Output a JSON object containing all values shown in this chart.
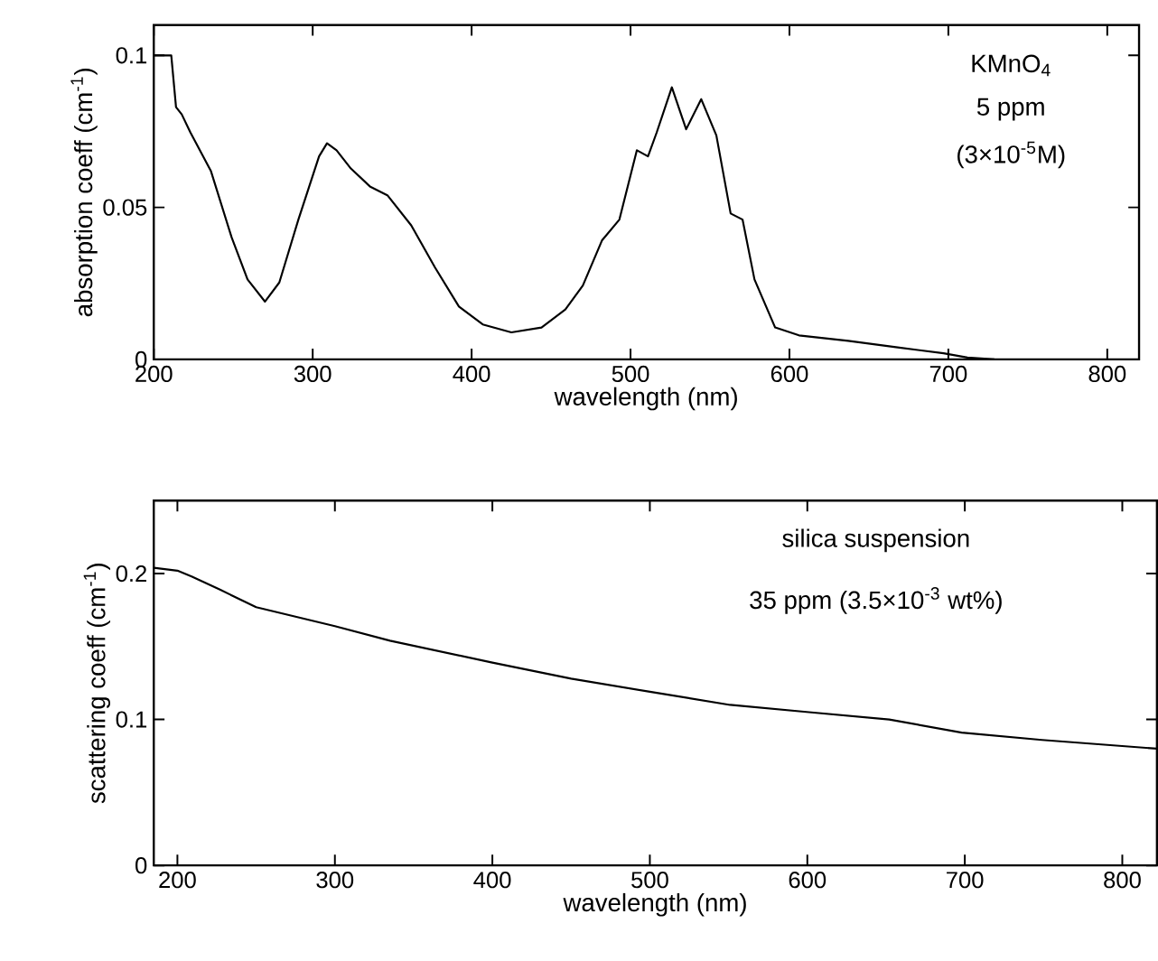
{
  "chart_data": [
    {
      "type": "line",
      "xlabel": "wavelength (nm)",
      "ylabel": "absorption coeff  (cm$^{-1}$)",
      "color": "#000000",
      "x": [
        200,
        211,
        214,
        217.6,
        223,
        236,
        249,
        259,
        270,
        279,
        291,
        304,
        309,
        315,
        324,
        336,
        347,
        362,
        377,
        392,
        407,
        425,
        444,
        459,
        470,
        482,
        493,
        504,
        511,
        516.5,
        526,
        535,
        544.5,
        554,
        563,
        570.5,
        578,
        591,
        606,
        637,
        667,
        697,
        712,
        729
      ],
      "values": [
        0.1,
        0.1,
        0.083,
        0.0806,
        0.0747,
        0.0619,
        0.0401,
        0.0263,
        0.019,
        0.0253,
        0.046,
        0.0668,
        0.0711,
        0.0688,
        0.0628,
        0.0569,
        0.054,
        0.0441,
        0.0302,
        0.0174,
        0.0115,
        0.0089,
        0.0105,
        0.0164,
        0.0243,
        0.0391,
        0.046,
        0.0688,
        0.0668,
        0.0747,
        0.0895,
        0.0757,
        0.0856,
        0.0737,
        0.048,
        0.046,
        0.0263,
        0.0105,
        0.0079,
        0.0061,
        0.004,
        0.002,
        0.0006,
        0
      ],
      "xlim": [
        200,
        820
      ],
      "ylim": [
        0,
        0.11
      ],
      "xticks": [
        200,
        300,
        400,
        500,
        600,
        700,
        800
      ],
      "yticks": [
        0,
        0.05,
        0.1
      ],
      "annotations": [
        "KMnO$_{4}$",
        "5 ppm",
        "(3×10$^{-5}$M)"
      ]
    },
    {
      "type": "line",
      "xlabel": "wavelength (nm)",
      "ylabel": "scattering coeff  (cm$^{-1}$)",
      "color": "#000000",
      "x": [
        185,
        200,
        209,
        227,
        250,
        300,
        335,
        400,
        450,
        500,
        551,
        601,
        652,
        698,
        749,
        822
      ],
      "values": [
        0.204,
        0.202,
        0.198,
        0.189,
        0.177,
        0.164,
        0.154,
        0.139,
        0.128,
        0.119,
        0.11,
        0.105,
        0.1,
        0.091,
        0.086,
        0.08
      ],
      "xlim": [
        185,
        822
      ],
      "ylim": [
        0,
        0.25
      ],
      "xticks": [
        200,
        300,
        400,
        500,
        600,
        700,
        800
      ],
      "yticks": [
        0,
        0.1,
        0.2
      ],
      "annotations": [
        "silica suspension",
        "35 ppm (3.5×10$^{-3}$ wt%)"
      ]
    }
  ]
}
